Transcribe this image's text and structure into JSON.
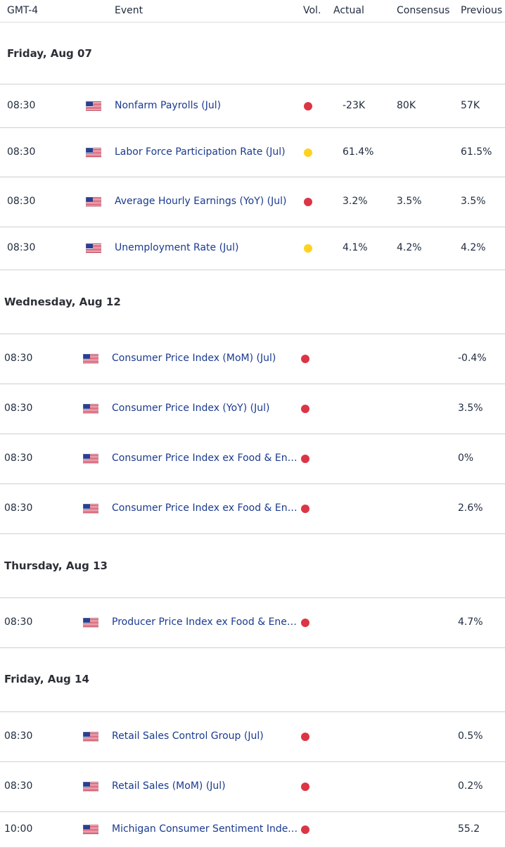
{
  "header": {
    "timezone": "GMT-4",
    "event": "Event",
    "vol": "Vol.",
    "actual": "Actual",
    "consensus": "Consensus",
    "previous": "Previous"
  },
  "colors": {
    "high": "#dc3545",
    "medium": "#ffd21f",
    "event_link": "#1a3a8f"
  },
  "days": [
    {
      "label": "Friday, Aug 07",
      "events": [
        {
          "time": "08:30",
          "country_flag": "us-flag-icon",
          "event": "Nonfarm Payrolls (Jul)",
          "vol": "high",
          "actual": "-23K",
          "consensus": "80K",
          "previous": "57K"
        },
        {
          "time": "08:30",
          "country_flag": "us-flag-icon",
          "event": "Labor Force Participation Rate (Jul)",
          "vol": "medium",
          "actual": "61.4%",
          "consensus": "",
          "previous": "61.5%"
        },
        {
          "time": "08:30",
          "country_flag": "us-flag-icon",
          "event": "Average Hourly Earnings (YoY) (Jul)",
          "vol": "high",
          "actual": "3.2%",
          "consensus": "3.5%",
          "previous": "3.5%"
        },
        {
          "time": "08:30",
          "country_flag": "us-flag-icon",
          "event": "Unemployment Rate (Jul)",
          "vol": "medium",
          "actual": "4.1%",
          "consensus": "4.2%",
          "previous": "4.2%"
        }
      ]
    },
    {
      "label": "Wednesday, Aug 12",
      "events": [
        {
          "time": "08:30",
          "country_flag": "us-flag-icon",
          "event": "Consumer Price Index (MoM) (Jul)",
          "vol": "high",
          "actual": "",
          "consensus": "",
          "previous": "-0.4%"
        },
        {
          "time": "08:30",
          "country_flag": "us-flag-icon",
          "event": "Consumer Price Index (YoY) (Jul)",
          "vol": "high",
          "actual": "",
          "consensus": "",
          "previous": "3.5%"
        },
        {
          "time": "08:30",
          "country_flag": "us-flag-icon",
          "event": "Consumer Price Index ex Food & Energy (MoM) (Jul)",
          "vol": "high",
          "actual": "",
          "consensus": "",
          "previous": "0%"
        },
        {
          "time": "08:30",
          "country_flag": "us-flag-icon",
          "event": "Consumer Price Index ex Food & Energy (YoY) (Jul)",
          "vol": "high",
          "actual": "",
          "consensus": "",
          "previous": "2.6%"
        }
      ]
    },
    {
      "label": "Thursday, Aug 13",
      "events": [
        {
          "time": "08:30",
          "country_flag": "us-flag-icon",
          "event": "Producer Price Index ex Food & Energy (YoY) (Jul)",
          "vol": "high",
          "actual": "",
          "consensus": "",
          "previous": "4.7%"
        }
      ]
    },
    {
      "label": "Friday, Aug 14",
      "events": [
        {
          "time": "08:30",
          "country_flag": "us-flag-icon",
          "event": "Retail Sales Control Group (Jul)",
          "vol": "high",
          "actual": "",
          "consensus": "",
          "previous": "0.5%"
        },
        {
          "time": "08:30",
          "country_flag": "us-flag-icon",
          "event": "Retail Sales (MoM) (Jul)",
          "vol": "high",
          "actual": "",
          "consensus": "",
          "previous": "0.2%"
        },
        {
          "time": "10:00",
          "country_flag": "us-flag-icon",
          "event": "Michigan Consumer Sentiment Index (Aug)",
          "vol": "high",
          "actual": "",
          "consensus": "",
          "previous": "55.2"
        }
      ]
    }
  ]
}
